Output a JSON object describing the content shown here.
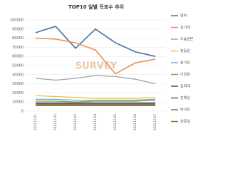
{
  "chart_data": {
    "type": "line",
    "title": "TOP10 일별 득표수 추이",
    "watermark": "SURVEY",
    "x": [
      "2023.12.01",
      "2023.12.02",
      "2023.12.03",
      "2023.12.04",
      "2023.12.05",
      "2023.12.06",
      "2023.12.07"
    ],
    "ylim": [
      0,
      100000
    ],
    "yticks": [
      0,
      10000,
      20000,
      30000,
      40000,
      50000,
      60000,
      70000,
      80000,
      90000,
      100000
    ],
    "grid": true,
    "series": [
      {
        "name": "영탁",
        "color": "#4a6fa5",
        "values": [
          86000,
          93000,
          69000,
          90000,
          75000,
          65000,
          60000
        ]
      },
      {
        "name": "김기태",
        "color": "#e8915a",
        "values": [
          80000,
          79000,
          75000,
          67000,
          41000,
          53000,
          57000
        ]
      },
      {
        "name": "이솔로몬",
        "color": "#a5a5a5",
        "values": [
          36000,
          34000,
          36000,
          39000,
          38000,
          35000,
          30000
        ]
      },
      {
        "name": "정동원",
        "color": "#f2c12e",
        "values": [
          17000,
          16000,
          15000,
          14000,
          14000,
          14000,
          15000
        ]
      },
      {
        "name": "송가인",
        "color": "#6fa8dc",
        "values": [
          13000,
          13000,
          12000,
          12000,
          12000,
          12000,
          13000
        ]
      },
      {
        "name": "이찬원",
        "color": "#70ad47",
        "values": [
          11000,
          11000,
          10000,
          11000,
          11000,
          11000,
          12000
        ]
      },
      {
        "name": "김희재",
        "color": "#2f4f8a",
        "values": [
          9000,
          9000,
          9000,
          9000,
          9000,
          9000,
          9000
        ]
      },
      {
        "name": "진해성",
        "color": "#9e4a2a",
        "values": [
          8000,
          8000,
          8000,
          8000,
          8000,
          8000,
          8000
        ]
      },
      {
        "name": "박서진",
        "color": "#707070",
        "values": [
          7000,
          7000,
          7000,
          7000,
          7000,
          7000,
          7000
        ]
      },
      {
        "name": "양준일",
        "color": "#8a7a2a",
        "values": [
          6000,
          6000,
          6000,
          6000,
          6000,
          6000,
          6000
        ]
      }
    ]
  }
}
